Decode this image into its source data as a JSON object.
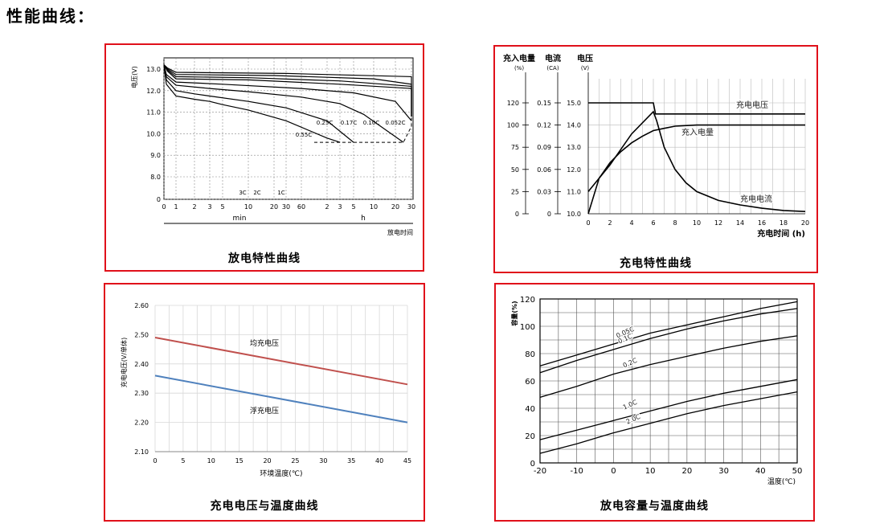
{
  "page": {
    "heading": "性能曲线："
  },
  "chart_data": [
    {
      "type": "line",
      "caption": "放电特性曲线",
      "ylabel": "电压(V)",
      "xlabel": "放电时间",
      "y_ticks": [
        "0",
        "8.0",
        "9.0",
        "10.0",
        "11.0",
        "12.0",
        "13.0"
      ],
      "x_ticks": [
        "0",
        "1",
        "2",
        "3",
        "5",
        "10",
        "20",
        "30",
        "60",
        "2",
        "3",
        "5",
        "10",
        "20",
        "30"
      ],
      "x_groups": [
        "min",
        "h"
      ],
      "annotations": [
        "3C",
        "2C",
        "1C",
        "0.55C",
        "0.25C",
        "0.17C",
        "0.10C",
        "0.052C"
      ],
      "series": [
        {
          "name": "3C",
          "x_pos": [
            0,
            0.2,
            1,
            2,
            3,
            4,
            5,
            7,
            9,
            10
          ],
          "y": [
            13.2,
            12.3,
            11.75,
            11.6,
            11.5,
            11.35,
            11.1,
            10.6,
            9.8,
            9.6
          ]
        },
        {
          "name": "2C",
          "x_pos": [
            0,
            0.2,
            1,
            2,
            3,
            5,
            7,
            9,
            11
          ],
          "y": [
            13.2,
            12.5,
            12.0,
            11.85,
            11.75,
            11.5,
            11.2,
            10.6,
            9.6
          ]
        },
        {
          "name": "1C",
          "x_pos": [
            0,
            0.2,
            1,
            3,
            5,
            8,
            10,
            11.5,
            13.5
          ],
          "y": [
            13.2,
            12.65,
            12.25,
            12.1,
            11.95,
            11.7,
            11.4,
            10.9,
            9.6
          ]
        },
        {
          "name": "0.55C",
          "x_pos": [
            0,
            0.2,
            1,
            4,
            8,
            11,
            13,
            15
          ],
          "y": [
            13.2,
            12.75,
            12.4,
            12.3,
            12.1,
            11.9,
            11.5,
            10.6
          ]
        },
        {
          "name": "0.25C",
          "x_pos": [
            0,
            0.3,
            1,
            5,
            10,
            14,
            16,
            18.5
          ],
          "y": [
            13.2,
            12.9,
            12.55,
            12.5,
            12.3,
            12.1,
            11.7,
            10.8
          ]
        },
        {
          "name": "0.17C",
          "x_pos": [
            0,
            0.3,
            1,
            5,
            10,
            15,
            17.5,
            19.5
          ],
          "y": [
            13.2,
            12.95,
            12.65,
            12.6,
            12.45,
            12.2,
            11.8,
            10.8
          ]
        },
        {
          "name": "0.10C",
          "x_pos": [
            0,
            0.3,
            1,
            6,
            12,
            17,
            19.5,
            21.5
          ],
          "y": [
            13.2,
            13.0,
            12.75,
            12.7,
            12.55,
            12.3,
            11.9,
            10.8
          ]
        },
        {
          "name": "0.052C",
          "x_pos": [
            0,
            0.3,
            1,
            7,
            14,
            19,
            22,
            24.5
          ],
          "y": [
            13.2,
            13.05,
            12.85,
            12.8,
            12.65,
            12.4,
            12.0,
            10.8
          ]
        }
      ],
      "end_voltage_line": {
        "x_pos": [
          8.5,
          13.5,
          15,
          18.5,
          24.5,
          25.5
        ],
        "y": [
          9.6,
          9.6,
          10.35,
          10.75,
          10.8,
          10.8
        ]
      }
    },
    {
      "type": "line",
      "caption": "充电特性曲线",
      "axis_titles": [
        "充入电量",
        "电流",
        "电压"
      ],
      "axis_units": [
        "(%)",
        "(CA)",
        "(V)"
      ],
      "xlabel": "充电时间 (h)",
      "x_ticks": [
        "0",
        "2",
        "4",
        "6",
        "8",
        "10",
        "12",
        "14",
        "16",
        "18",
        "20"
      ],
      "y_ticks_pct": [
        "0",
        "25",
        "50",
        "75",
        "100",
        "120"
      ],
      "y_ticks_ca": [
        "0",
        "0.03",
        "0.06",
        "0.09",
        "0.12",
        "0.15"
      ],
      "y_ticks_v": [
        "10.0",
        "11.0",
        "12.0",
        "13.0",
        "14.0",
        "15.0"
      ],
      "series": [
        {
          "name": "充电电压",
          "x": [
            0,
            6,
            6.2,
            20
          ],
          "v": [
            15.0,
            15.0,
            14.5,
            14.5
          ]
        },
        {
          "name": "充入电量",
          "x": [
            0,
            1,
            2,
            3,
            4,
            5,
            6,
            7,
            8,
            10,
            14,
            20
          ],
          "v": [
            10.0,
            11.6,
            12.3,
            12.8,
            13.2,
            13.5,
            13.75,
            13.85,
            13.95,
            14.0,
            14.0,
            14.0
          ]
        },
        {
          "name": "充电电流",
          "x": [
            0,
            2,
            4,
            6,
            6.3,
            7,
            8,
            9,
            10,
            12,
            14,
            16,
            18,
            20
          ],
          "v": [
            11.0,
            12.2,
            13.6,
            14.6,
            14.2,
            13.0,
            12.0,
            11.4,
            11.0,
            10.6,
            10.4,
            10.25,
            10.15,
            10.1
          ]
        }
      ]
    },
    {
      "type": "line",
      "caption": "充电电压与温度曲线",
      "ylabel": "充电电压(V/单体)",
      "xlabel": "环境温度(℃)",
      "ylim": [
        2.1,
        2.6
      ],
      "y_ticks": [
        "2.10",
        "2.20",
        "2.30",
        "2.40",
        "2.50",
        "2.60"
      ],
      "x_ticks": [
        "0",
        "5",
        "10",
        "15",
        "20",
        "25",
        "30",
        "35",
        "40",
        "45"
      ],
      "series": [
        {
          "name": "均充电压",
          "x": [
            0,
            45
          ],
          "y": [
            2.49,
            2.33
          ],
          "color": "#c0504d"
        },
        {
          "name": "浮充电压",
          "x": [
            0,
            45
          ],
          "y": [
            2.36,
            2.2
          ],
          "color": "#4f81bd"
        }
      ]
    },
    {
      "type": "line",
      "caption": "放电容量与温度曲线",
      "ylabel": "容量(%)",
      "xlabel": "温度(℃)",
      "xlim": [
        -20,
        50
      ],
      "ylim": [
        0,
        120
      ],
      "y_ticks": [
        "0",
        "20",
        "40",
        "60",
        "80",
        "100",
        "120"
      ],
      "x_ticks": [
        "-20",
        "-10",
        "0",
        "10",
        "20",
        "30",
        "40",
        "50"
      ],
      "series": [
        {
          "name": "0.05C",
          "x": [
            -20,
            -10,
            0,
            10,
            20,
            30,
            40,
            50
          ],
          "y": [
            71,
            79,
            87,
            95,
            101,
            107,
            113,
            118
          ]
        },
        {
          "name": "0.1C",
          "x": [
            -20,
            -10,
            0,
            10,
            20,
            30,
            40,
            50
          ],
          "y": [
            66,
            75,
            83,
            91,
            98,
            104,
            109,
            113
          ]
        },
        {
          "name": "0.2C",
          "x": [
            -20,
            -10,
            0,
            10,
            20,
            30,
            40,
            50
          ],
          "y": [
            48,
            56,
            65,
            72,
            78,
            84,
            89,
            93
          ]
        },
        {
          "name": "1.0C",
          "x": [
            -20,
            -10,
            0,
            10,
            20,
            30,
            40,
            50
          ],
          "y": [
            17,
            24,
            31,
            38,
            45,
            51,
            56,
            61
          ]
        },
        {
          "name": "2.0C",
          "x": [
            -20,
            -10,
            0,
            10,
            20,
            30,
            40,
            50
          ],
          "y": [
            7,
            14,
            22,
            29,
            36,
            42,
            47,
            52
          ]
        }
      ]
    }
  ]
}
